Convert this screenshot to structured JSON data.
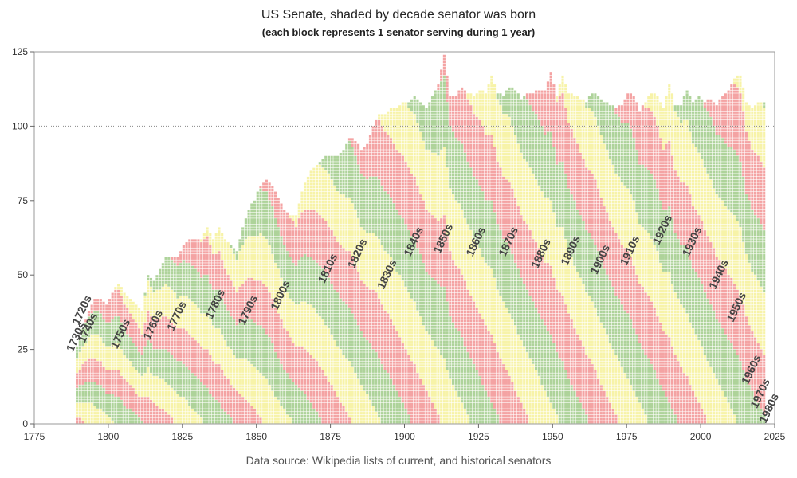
{
  "chart_data": {
    "type": "area",
    "title": "US Senate, shaded by decade senator was born",
    "subtitle": "(each block represents 1 senator serving during 1 year)",
    "source": "Data source: Wikipedia lists of current, and historical senators",
    "xlabel": "",
    "ylabel": "",
    "xlim": [
      1775,
      2025
    ],
    "ylim": [
      0,
      125
    ],
    "x_ticks": [
      1775,
      1800,
      1825,
      1850,
      1875,
      1900,
      1925,
      1950,
      1975,
      2000,
      2025
    ],
    "y_ticks": [
      0,
      25,
      50,
      75,
      100,
      125
    ],
    "reference_line": 100,
    "grid": false,
    "colors": [
      "#aed39a",
      "#f4a3a3",
      "#f7f3a8"
    ],
    "block_border_color": "#ffffff",
    "year_range": [
      1789,
      2021
    ],
    "total_senators_by_year": [
      [
        1789,
        26
      ],
      [
        1791,
        32
      ],
      [
        1793,
        38
      ],
      [
        1795,
        42
      ],
      [
        1797,
        42
      ],
      [
        1799,
        40
      ],
      [
        1801,
        44
      ],
      [
        1803,
        47
      ],
      [
        1805,
        44
      ],
      [
        1807,
        42
      ],
      [
        1809,
        40
      ],
      [
        1811,
        38
      ],
      [
        1813,
        50
      ],
      [
        1815,
        48
      ],
      [
        1817,
        52
      ],
      [
        1819,
        56
      ],
      [
        1821,
        56
      ],
      [
        1823,
        56
      ],
      [
        1825,
        60
      ],
      [
        1827,
        62
      ],
      [
        1829,
        62
      ],
      [
        1831,
        62
      ],
      [
        1833,
        66
      ],
      [
        1835,
        62
      ],
      [
        1837,
        66
      ],
      [
        1839,
        62
      ],
      [
        1841,
        60
      ],
      [
        1843,
        58
      ],
      [
        1845,
        66
      ],
      [
        1847,
        72
      ],
      [
        1849,
        75
      ],
      [
        1851,
        80
      ],
      [
        1853,
        82
      ],
      [
        1855,
        80
      ],
      [
        1857,
        76
      ],
      [
        1859,
        72
      ],
      [
        1861,
        70
      ],
      [
        1863,
        70
      ],
      [
        1865,
        78
      ],
      [
        1867,
        83
      ],
      [
        1869,
        86
      ],
      [
        1871,
        88
      ],
      [
        1873,
        90
      ],
      [
        1875,
        90
      ],
      [
        1877,
        90
      ],
      [
        1879,
        92
      ],
      [
        1881,
        96
      ],
      [
        1883,
        95
      ],
      [
        1885,
        92
      ],
      [
        1887,
        94
      ],
      [
        1889,
        100
      ],
      [
        1891,
        104
      ],
      [
        1893,
        104
      ],
      [
        1895,
        106
      ],
      [
        1897,
        106
      ],
      [
        1899,
        108
      ],
      [
        1901,
        108
      ],
      [
        1903,
        110
      ],
      [
        1905,
        108
      ],
      [
        1907,
        106
      ],
      [
        1909,
        110
      ],
      [
        1911,
        114
      ],
      [
        1913,
        124
      ],
      [
        1915,
        110
      ],
      [
        1917,
        110
      ],
      [
        1919,
        113
      ],
      [
        1921,
        111
      ],
      [
        1923,
        110
      ],
      [
        1925,
        112
      ],
      [
        1927,
        111
      ],
      [
        1929,
        117
      ],
      [
        1931,
        111
      ],
      [
        1933,
        110
      ],
      [
        1935,
        113
      ],
      [
        1937,
        112
      ],
      [
        1939,
        109
      ],
      [
        1941,
        111
      ],
      [
        1943,
        111
      ],
      [
        1945,
        112
      ],
      [
        1947,
        112
      ],
      [
        1949,
        118
      ],
      [
        1951,
        110
      ],
      [
        1953,
        117
      ],
      [
        1955,
        111
      ],
      [
        1957,
        110
      ],
      [
        1959,
        109
      ],
      [
        1961,
        108
      ],
      [
        1963,
        111
      ],
      [
        1965,
        110
      ],
      [
        1967,
        108
      ],
      [
        1969,
        107
      ],
      [
        1971,
        106
      ],
      [
        1973,
        107
      ],
      [
        1975,
        111
      ],
      [
        1977,
        110
      ],
      [
        1979,
        105
      ],
      [
        1981,
        108
      ],
      [
        1983,
        111
      ],
      [
        1985,
        110
      ],
      [
        1987,
        106
      ],
      [
        1989,
        114
      ],
      [
        1991,
        107
      ],
      [
        1993,
        107
      ],
      [
        1995,
        112
      ],
      [
        1997,
        108
      ],
      [
        1999,
        110
      ],
      [
        2001,
        108
      ],
      [
        2003,
        109
      ],
      [
        2005,
        107
      ],
      [
        2007,
        110
      ],
      [
        2009,
        112
      ],
      [
        2011,
        116
      ],
      [
        2013,
        117
      ],
      [
        2015,
        108
      ],
      [
        2017,
        106
      ],
      [
        2019,
        108
      ],
      [
        2021,
        108
      ]
    ],
    "series": [
      {
        "name": "1720s",
        "label_position": [
          1790,
          33
        ]
      },
      {
        "name": "1730s",
        "label_position": [
          1788,
          24
        ]
      },
      {
        "name": "1740s",
        "label_position": [
          1792,
          27
        ]
      },
      {
        "name": "1750s",
        "label_position": [
          1803,
          25
        ]
      },
      {
        "name": "1760s",
        "label_position": [
          1814,
          28
        ]
      },
      {
        "name": "1770s",
        "label_position": [
          1822,
          31
        ]
      },
      {
        "name": "1780s",
        "label_position": [
          1835,
          35
        ]
      },
      {
        "name": "1790s",
        "label_position": [
          1846,
          33
        ]
      },
      {
        "name": "1800s",
        "label_position": [
          1857,
          38
        ]
      },
      {
        "name": "1810s",
        "label_position": [
          1873,
          47
        ]
      },
      {
        "name": "1820s",
        "label_position": [
          1883,
          52
        ]
      },
      {
        "name": "1830s",
        "label_position": [
          1893,
          45
        ]
      },
      {
        "name": "1840s",
        "label_position": [
          1902,
          56
        ]
      },
      {
        "name": "1850s",
        "label_position": [
          1912,
          57
        ]
      },
      {
        "name": "1860s",
        "label_position": [
          1923,
          56
        ]
      },
      {
        "name": "1870s",
        "label_position": [
          1934,
          56
        ]
      },
      {
        "name": "1880s",
        "label_position": [
          1945,
          52
        ]
      },
      {
        "name": "1890s",
        "label_position": [
          1955,
          53
        ]
      },
      {
        "name": "1900s",
        "label_position": [
          1965,
          50
        ]
      },
      {
        "name": "1910s",
        "label_position": [
          1975,
          53
        ]
      },
      {
        "name": "1920s",
        "label_position": [
          1986,
          60
        ]
      },
      {
        "name": "1930s",
        "label_position": [
          1996,
          56
        ]
      },
      {
        "name": "1940s",
        "label_position": [
          2005,
          45
        ]
      },
      {
        "name": "1950s",
        "label_position": [
          2011,
          34
        ]
      },
      {
        "name": "1960s",
        "label_position": [
          2016,
          13
        ]
      },
      {
        "name": "1970s",
        "label_position": [
          2019,
          5
        ]
      },
      {
        "name": "1980s",
        "label_position": [
          2022,
          0
        ]
      }
    ]
  }
}
